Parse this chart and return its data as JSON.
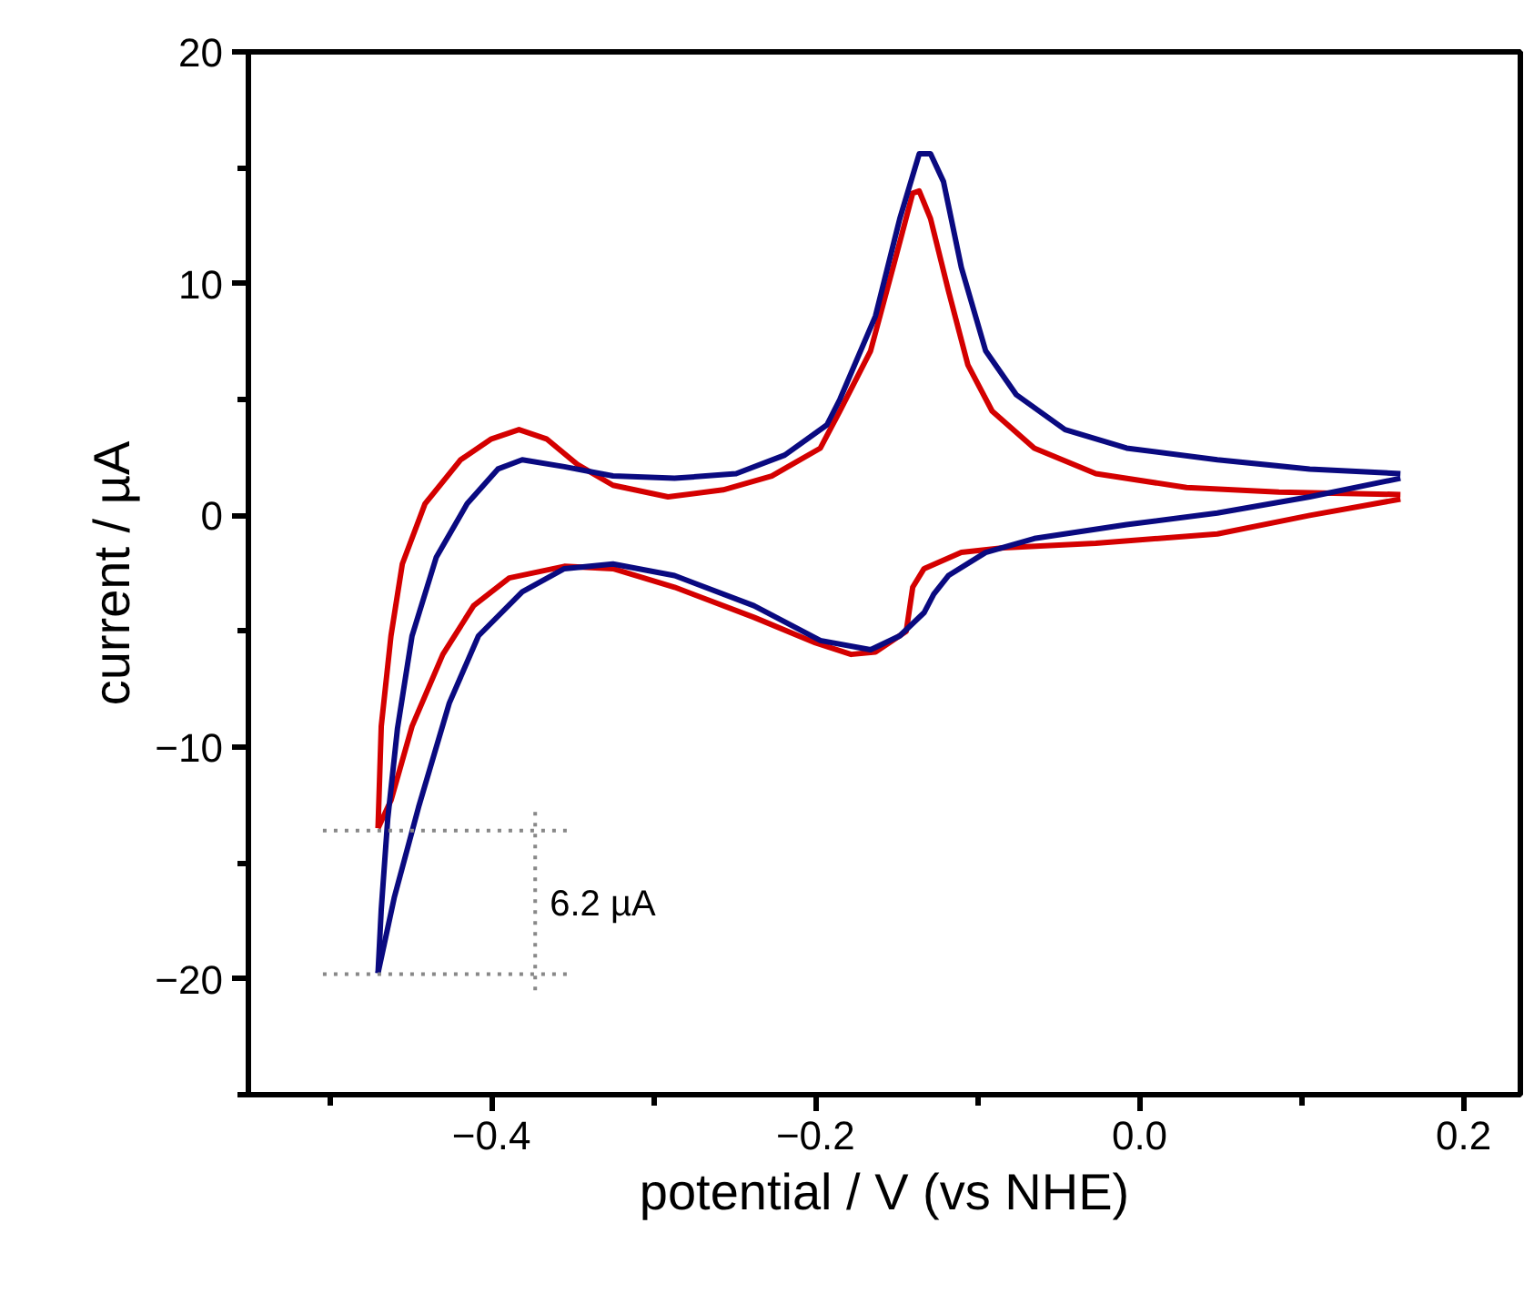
{
  "chart_data": {
    "type": "line",
    "xlabel": "potential / V (vs NHE)",
    "ylabel": "current / µA",
    "xlim": [
      -0.55,
      0.235
    ],
    "ylim": [
      -25,
      20
    ],
    "xticks": [
      {
        "value": -0.5,
        "label": null
      },
      -0.4,
      {
        "value": -0.3,
        "label": null
      },
      -0.2,
      {
        "value": -0.1,
        "label": null
      },
      {
        "value": 0,
        "label": "0.0"
      },
      {
        "value": 0.1,
        "label": null
      },
      0.2
    ],
    "yticks": [
      {
        "value": -25,
        "label": null
      },
      -20,
      {
        "value": -15,
        "label": null
      },
      -10,
      {
        "value": -5,
        "label": null
      },
      0,
      {
        "value": 5,
        "label": null
      },
      10,
      {
        "value": 15,
        "label": null
      },
      20
    ],
    "grid": false,
    "line_style": "solid",
    "marker": "none",
    "annotations": [
      "6.2 µA"
    ],
    "series": [
      {
        "color": "#d40000",
        "x": [
          0.161,
          0.105,
          0.048,
          -0.027,
          -0.084,
          -0.11,
          -0.133,
          -0.14,
          -0.144,
          -0.163,
          -0.178,
          -0.2,
          -0.238,
          -0.287,
          -0.325,
          -0.355,
          -0.389,
          -0.411,
          -0.43,
          -0.449,
          -0.462,
          -0.47
        ],
        "values": [
          0.7,
          0.0,
          -0.8,
          -1.2,
          -1.4,
          -1.6,
          -2.3,
          -3.1,
          -5.0,
          -5.9,
          -6.0,
          -5.5,
          -4.4,
          -3.1,
          -2.3,
          -2.2,
          -2.7,
          -3.9,
          -6.0,
          -9.1,
          -12.3,
          -13.5
        ]
      },
      {
        "color": "#d40000",
        "x": [
          -0.47,
          -0.468,
          -0.462,
          -0.455,
          -0.441,
          -0.419,
          -0.4,
          -0.383,
          -0.366,
          -0.347,
          -0.325,
          -0.291,
          -0.257,
          -0.227,
          -0.197,
          -0.185,
          -0.166,
          -0.151,
          -0.14,
          -0.136,
          -0.129,
          -0.118,
          -0.106,
          -0.091,
          -0.065,
          -0.027,
          0.029,
          0.086,
          0.161
        ],
        "values": [
          -13.5,
          -9.1,
          -5.2,
          -2.1,
          0.5,
          2.4,
          3.3,
          3.7,
          3.3,
          2.2,
          1.3,
          0.8,
          1.1,
          1.7,
          2.9,
          4.5,
          7.1,
          11.0,
          13.9,
          14.0,
          12.8,
          9.7,
          6.5,
          4.5,
          2.9,
          1.8,
          1.2,
          1.0,
          0.9
        ]
      },
      {
        "color": "#0a0a80",
        "x": [
          0.161,
          0.105,
          0.048,
          -0.008,
          -0.065,
          -0.095,
          -0.118,
          -0.127,
          -0.133,
          -0.148,
          -0.166,
          -0.197,
          -0.238,
          -0.287,
          -0.325,
          -0.355,
          -0.381,
          -0.408,
          -0.426,
          -0.445,
          -0.46,
          -0.47
        ],
        "values": [
          1.6,
          0.8,
          0.1,
          -0.4,
          -1.0,
          -1.6,
          -2.6,
          -3.4,
          -4.2,
          -5.2,
          -5.8,
          -5.4,
          -3.9,
          -2.6,
          -2.1,
          -2.3,
          -3.3,
          -5.2,
          -8.1,
          -12.6,
          -16.5,
          -19.75
        ]
      },
      {
        "color": "#0a0a80",
        "x": [
          -0.47,
          -0.468,
          -0.464,
          -0.458,
          -0.449,
          -0.434,
          -0.415,
          -0.396,
          -0.381,
          -0.355,
          -0.325,
          -0.287,
          -0.249,
          -0.219,
          -0.193,
          -0.185,
          -0.163,
          -0.148,
          -0.136,
          -0.129,
          -0.121,
          -0.11,
          -0.095,
          -0.076,
          -0.046,
          -0.008,
          0.048,
          0.105,
          0.161
        ],
        "values": [
          -19.75,
          -17.0,
          -13.1,
          -9.2,
          -5.2,
          -1.8,
          0.5,
          2.0,
          2.4,
          2.1,
          1.7,
          1.6,
          1.8,
          2.6,
          3.9,
          5.0,
          8.6,
          12.8,
          15.6,
          15.6,
          14.4,
          10.7,
          7.1,
          5.2,
          3.7,
          2.9,
          2.4,
          2.0,
          1.8
        ]
      },
      {
        "color": "#888888",
        "line_style": "dotted",
        "x": [
          -0.504,
          -0.351
        ],
        "values": [
          -13.6,
          -13.6
        ]
      },
      {
        "color": "#888888",
        "line_style": "dotted",
        "x": [
          -0.504,
          -0.351
        ],
        "values": [
          -19.8,
          -19.8
        ]
      },
      {
        "color": "#888888",
        "line_style": "dotted",
        "x": [
          -0.373,
          -0.373
        ],
        "values": [
          -12.8,
          -20.8
        ]
      }
    ]
  }
}
